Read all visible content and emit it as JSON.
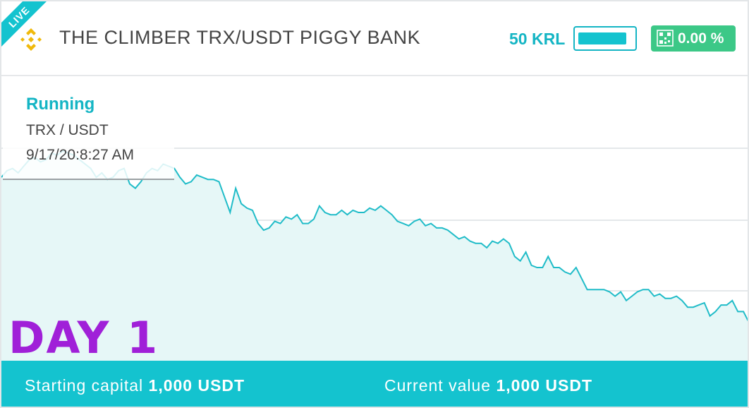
{
  "header": {
    "live_label": "LIVE",
    "title": "THE CLIMBER TRX/USDT PIGGY BANK",
    "krl_label": "50 KRL",
    "krl_level": 0.9,
    "pct_label": "0.00 %"
  },
  "status": {
    "state": "Running",
    "pair": "TRX / USDT",
    "timestamp": "9/17/20:8:27 AM"
  },
  "day_label": "DAY 1",
  "footer": {
    "starting_label": "Starting capital",
    "starting_value": "1,000 USDT",
    "current_label": "Current value",
    "current_value": "1,000 USDT"
  },
  "colors": {
    "accent": "#14c3cf",
    "line": "#20bcc8",
    "area": "#e6f7f7",
    "success": "#3cc887",
    "day": "#a020d8"
  },
  "chart_data": {
    "type": "area",
    "title": "",
    "xlabel": "",
    "ylabel": "",
    "grid": true,
    "ylim": [
      0,
      100
    ],
    "values": [
      74,
      77,
      78,
      76,
      79,
      82,
      83,
      81,
      82,
      85,
      84,
      86,
      85,
      84,
      82,
      80,
      78,
      74,
      76,
      73,
      74,
      77,
      78,
      71,
      69,
      72,
      76,
      78,
      77,
      80,
      79,
      78,
      74,
      71,
      72,
      75,
      74,
      73,
      73,
      72,
      65,
      58,
      69,
      62,
      60,
      59,
      53,
      50,
      51,
      54,
      53,
      56,
      55,
      57,
      53,
      53,
      55,
      61,
      58,
      57,
      57,
      59,
      57,
      59,
      58,
      58,
      60,
      59,
      61,
      59,
      57,
      54,
      53,
      52,
      54,
      55,
      52,
      53,
      51,
      51,
      50,
      48,
      46,
      47,
      45,
      44,
      44,
      42,
      45,
      44,
      46,
      44,
      38,
      36,
      40,
      34,
      33,
      33,
      38,
      33,
      33,
      31,
      30,
      33,
      28,
      23,
      23,
      23,
      23,
      22,
      20,
      22,
      18,
      20,
      22,
      23,
      23,
      20,
      21,
      19,
      19,
      20,
      18,
      15,
      15,
      16,
      17,
      11,
      13,
      16,
      16,
      18,
      13,
      13,
      8
    ],
    "note_values": "estimated relative levels; chart has no printed axes"
  }
}
